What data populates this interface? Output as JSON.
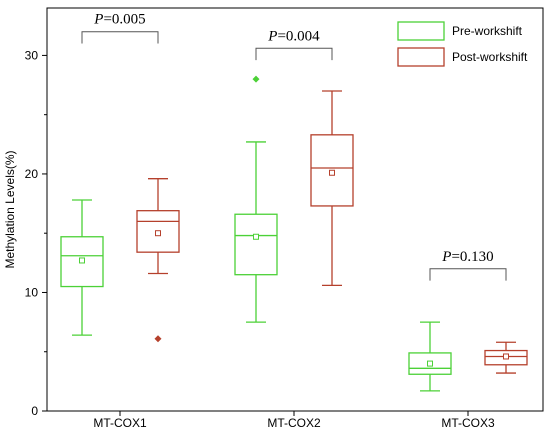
{
  "chart_data": {
    "type": "box",
    "ylabel": "Methylation Levels(%)",
    "xlabel": "",
    "ylim": [
      0,
      34
    ],
    "yticks": [
      0,
      10,
      20,
      30
    ],
    "categories": [
      "MT-COX1",
      "MT-COX2",
      "MT-COX3"
    ],
    "legend_position": "top-right",
    "series": [
      {
        "name": "Pre-workshift",
        "color": "#4cd137",
        "boxes": [
          {
            "category": "MT-COX1",
            "whisker_low": 6.4,
            "q1": 10.5,
            "median": 13.1,
            "q3": 14.7,
            "whisker_high": 17.8,
            "mean": 12.7,
            "outliers": []
          },
          {
            "category": "MT-COX2",
            "whisker_low": 7.5,
            "q1": 11.5,
            "median": 14.8,
            "q3": 16.6,
            "whisker_high": 22.7,
            "mean": 14.7,
            "outliers": [
              28.0
            ]
          },
          {
            "category": "MT-COX3",
            "whisker_low": 1.7,
            "q1": 3.1,
            "median": 3.6,
            "q3": 4.9,
            "whisker_high": 7.5,
            "mean": 4.0,
            "outliers": []
          }
        ]
      },
      {
        "name": "Post-workshift",
        "color": "#b5402c",
        "boxes": [
          {
            "category": "MT-COX1",
            "whisker_low": 11.6,
            "q1": 13.4,
            "median": 16.0,
            "q3": 16.9,
            "whisker_high": 19.6,
            "mean": 15.0,
            "outliers": [
              6.1
            ]
          },
          {
            "category": "MT-COX2",
            "whisker_low": 10.6,
            "q1": 17.3,
            "median": 20.5,
            "q3": 23.3,
            "whisker_high": 27.0,
            "mean": 20.1,
            "outliers": []
          },
          {
            "category": "MT-COX3",
            "whisker_low": 3.2,
            "q1": 3.9,
            "median": 4.6,
            "q3": 5.1,
            "whisker_high": 5.8,
            "mean": 4.6,
            "outliers": []
          }
        ]
      }
    ],
    "annotations": [
      {
        "category": "MT-COX1",
        "p_letter": "P",
        "p_rest": "=0.005",
        "bracket_y": 32.0,
        "bracket_drop": 1.0
      },
      {
        "category": "MT-COX2",
        "p_letter": "P",
        "p_rest": "=0.004",
        "bracket_y": 30.6,
        "bracket_drop": 1.0
      },
      {
        "category": "MT-COX3",
        "p_letter": "P",
        "p_rest": "=0.130",
        "bracket_y": 12.0,
        "bracket_drop": 1.0
      }
    ]
  }
}
